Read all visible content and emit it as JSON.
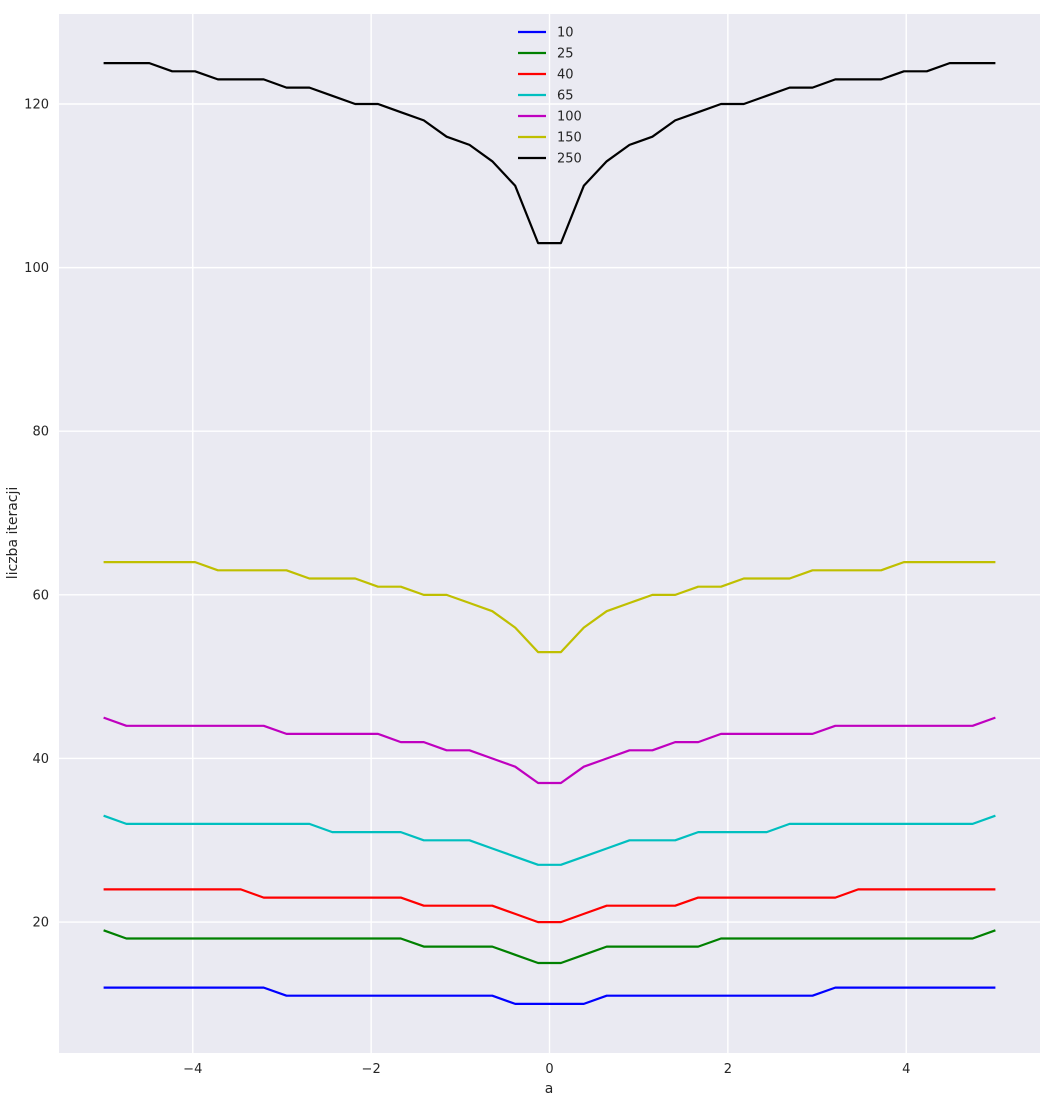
{
  "chart_data": {
    "type": "line",
    "xlabel": "a",
    "ylabel": "liczba iteracji",
    "xlim": [
      -5.5,
      5.5
    ],
    "ylim": [
      4,
      131
    ],
    "xticks": [
      -4,
      -2,
      0,
      2,
      4
    ],
    "xtick_labels": [
      "−4",
      "−2",
      "0",
      "2",
      "4"
    ],
    "yticks": [
      20,
      40,
      60,
      80,
      100,
      120
    ],
    "ytick_labels": [
      "20",
      "40",
      "60",
      "80",
      "100",
      "120"
    ],
    "grid": true,
    "legend_position": "top-center",
    "x": [
      -5.0,
      -4.744,
      -4.487,
      -4.231,
      -3.974,
      -3.718,
      -3.462,
      -3.205,
      -2.949,
      -2.692,
      -2.436,
      -2.179,
      -1.923,
      -1.667,
      -1.41,
      -1.154,
      -0.897,
      -0.641,
      -0.385,
      -0.128,
      0.128,
      0.385,
      0.641,
      0.897,
      1.154,
      1.41,
      1.667,
      1.923,
      2.179,
      2.436,
      2.692,
      2.949,
      3.205,
      3.462,
      3.718,
      3.974,
      4.231,
      4.487,
      4.744,
      5.0
    ],
    "series": [
      {
        "name": "10",
        "color": "#0000ff",
        "values": [
          12,
          12,
          12,
          12,
          12,
          12,
          12,
          12,
          11,
          11,
          11,
          11,
          11,
          11,
          11,
          11,
          11,
          11,
          10,
          10,
          10,
          10,
          11,
          11,
          11,
          11,
          11,
          11,
          11,
          11,
          11,
          11,
          12,
          12,
          12,
          12,
          12,
          12,
          12,
          12
        ]
      },
      {
        "name": "25",
        "color": "#008000",
        "values": [
          19,
          18,
          18,
          18,
          18,
          18,
          18,
          18,
          18,
          18,
          18,
          18,
          18,
          18,
          17,
          17,
          17,
          17,
          16,
          15,
          15,
          16,
          17,
          17,
          17,
          17,
          17,
          18,
          18,
          18,
          18,
          18,
          18,
          18,
          18,
          18,
          18,
          18,
          18,
          19
        ]
      },
      {
        "name": "40",
        "color": "#ff0000",
        "values": [
          24,
          24,
          24,
          24,
          24,
          24,
          24,
          23,
          23,
          23,
          23,
          23,
          23,
          23,
          22,
          22,
          22,
          22,
          21,
          20,
          20,
          21,
          22,
          22,
          22,
          22,
          23,
          23,
          23,
          23,
          23,
          23,
          23,
          24,
          24,
          24,
          24,
          24,
          24,
          24
        ]
      },
      {
        "name": "65",
        "color": "#00bfbf",
        "values": [
          33,
          32,
          32,
          32,
          32,
          32,
          32,
          32,
          32,
          32,
          31,
          31,
          31,
          31,
          30,
          30,
          30,
          29,
          28,
          27,
          27,
          28,
          29,
          30,
          30,
          30,
          31,
          31,
          31,
          31,
          32,
          32,
          32,
          32,
          32,
          32,
          32,
          32,
          32,
          33
        ]
      },
      {
        "name": "100",
        "color": "#bf00bf",
        "values": [
          45,
          44,
          44,
          44,
          44,
          44,
          44,
          44,
          43,
          43,
          43,
          43,
          43,
          42,
          42,
          41,
          41,
          40,
          39,
          37,
          37,
          39,
          40,
          41,
          41,
          42,
          42,
          43,
          43,
          43,
          43,
          43,
          44,
          44,
          44,
          44,
          44,
          44,
          44,
          45
        ]
      },
      {
        "name": "150",
        "color": "#bfbf00",
        "values": [
          64,
          64,
          64,
          64,
          64,
          63,
          63,
          63,
          63,
          62,
          62,
          62,
          61,
          61,
          60,
          60,
          59,
          58,
          56,
          53,
          53,
          56,
          58,
          59,
          60,
          60,
          61,
          61,
          62,
          62,
          62,
          63,
          63,
          63,
          63,
          64,
          64,
          64,
          64,
          64
        ]
      },
      {
        "name": "250",
        "color": "#000000",
        "values": [
          125,
          125,
          125,
          124,
          124,
          123,
          123,
          123,
          122,
          122,
          121,
          120,
          120,
          119,
          118,
          116,
          115,
          113,
          110,
          103,
          103,
          110,
          113,
          115,
          116,
          118,
          119,
          120,
          120,
          121,
          122,
          122,
          123,
          123,
          123,
          124,
          124,
          125,
          125,
          125
        ]
      }
    ]
  }
}
